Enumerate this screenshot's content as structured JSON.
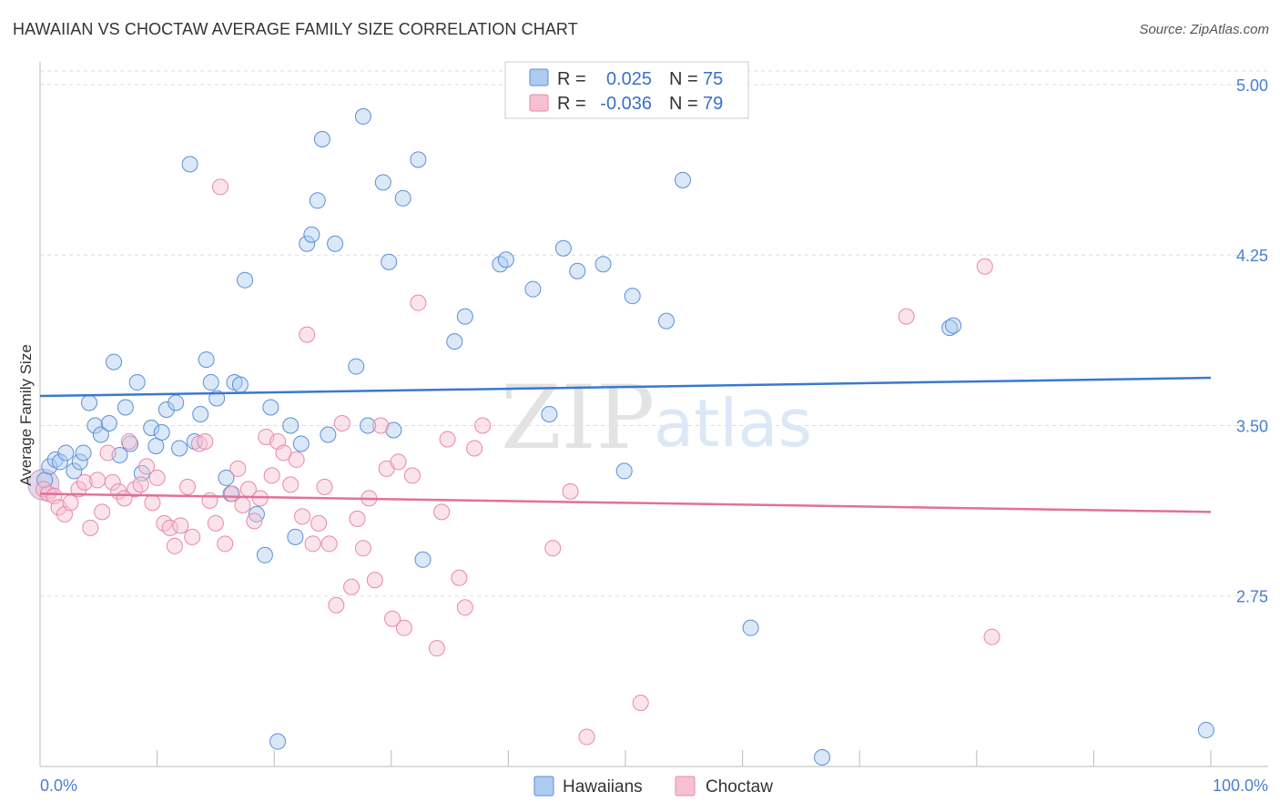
{
  "header": {
    "title": "HAWAIIAN VS CHOCTAW AVERAGE FAMILY SIZE CORRELATION CHART",
    "source": "Source: ZipAtlas.com"
  },
  "watermark": {
    "zip": "ZIP",
    "atlas": "atlas"
  },
  "colors": {
    "blue_fill": "#aecbf0",
    "blue_stroke": "#5b8fd6",
    "blue_line": "#3a78d0",
    "pink_fill": "#f6c0d2",
    "pink_stroke": "#e888aa",
    "pink_line": "#e2709a",
    "grid": "#dddddd",
    "tick_label": "#4a7fd0"
  },
  "legend": {
    "rows": [
      {
        "r_label": "R = ",
        "r_value": "0.025",
        "n_label": "N = ",
        "n_value": "75"
      },
      {
        "r_label": "R = ",
        "r_value": "-0.036",
        "n_label": "N = ",
        "n_value": "79"
      }
    ],
    "bottom": [
      "Hawaiians",
      "Choctaw"
    ]
  },
  "chart_data": {
    "type": "scatter",
    "title": "HAWAIIAN VS CHOCTAW AVERAGE FAMILY SIZE CORRELATION CHART",
    "xlabel": "",
    "ylabel": "Average Family Size",
    "xlim": [
      0,
      100
    ],
    "ylim": [
      2.0,
      5.1
    ],
    "x_tick_labels": [
      "0.0%",
      "100.0%"
    ],
    "y_ticks": [
      2.75,
      3.5,
      4.25,
      5.0
    ],
    "y_tick_labels": [
      "2.75",
      "3.50",
      "4.25",
      "5.00"
    ],
    "grid": "horizontal dashed",
    "legend_position": "top-center",
    "series": [
      {
        "name": "Hawaiians",
        "r": 0.025,
        "n": 75,
        "trend": [
          [
            0,
            3.63
          ],
          [
            100,
            3.71
          ]
        ],
        "points": [
          [
            0.4,
            3.26
          ],
          [
            0.8,
            3.32
          ],
          [
            1.3,
            3.35
          ],
          [
            1.7,
            3.34
          ],
          [
            2.2,
            3.38
          ],
          [
            2.9,
            3.3
          ],
          [
            3.4,
            3.34
          ],
          [
            3.7,
            3.38
          ],
          [
            4.2,
            3.6
          ],
          [
            4.7,
            3.5
          ],
          [
            5.2,
            3.46
          ],
          [
            5.9,
            3.51
          ],
          [
            6.3,
            3.78
          ],
          [
            6.8,
            3.37
          ],
          [
            7.3,
            3.58
          ],
          [
            7.7,
            3.42
          ],
          [
            8.3,
            3.69
          ],
          [
            8.7,
            3.29
          ],
          [
            9.5,
            3.49
          ],
          [
            9.9,
            3.41
          ],
          [
            10.4,
            3.47
          ],
          [
            10.8,
            3.57
          ],
          [
            11.6,
            3.6
          ],
          [
            11.9,
            3.4
          ],
          [
            12.8,
            4.65
          ],
          [
            13.2,
            3.43
          ],
          [
            13.7,
            3.55
          ],
          [
            14.2,
            3.79
          ],
          [
            14.6,
            3.69
          ],
          [
            15.1,
            3.62
          ],
          [
            15.9,
            3.27
          ],
          [
            16.3,
            3.2
          ],
          [
            16.6,
            3.69
          ],
          [
            17.1,
            3.68
          ],
          [
            17.5,
            4.14
          ],
          [
            18.5,
            3.11
          ],
          [
            19.2,
            2.93
          ],
          [
            19.7,
            3.58
          ],
          [
            20.3,
            2.11
          ],
          [
            21.4,
            3.5
          ],
          [
            21.8,
            3.01
          ],
          [
            22.3,
            3.42
          ],
          [
            22.8,
            4.3
          ],
          [
            23.2,
            4.34
          ],
          [
            23.7,
            4.49
          ],
          [
            24.1,
            4.76
          ],
          [
            24.6,
            3.46
          ],
          [
            25.2,
            4.3
          ],
          [
            27.0,
            3.76
          ],
          [
            27.6,
            4.86
          ],
          [
            28.0,
            3.5
          ],
          [
            29.3,
            4.57
          ],
          [
            29.8,
            4.22
          ],
          [
            30.2,
            3.48
          ],
          [
            31.0,
            4.5
          ],
          [
            32.3,
            4.67
          ],
          [
            32.7,
            2.91
          ],
          [
            35.4,
            3.87
          ],
          [
            36.3,
            3.98
          ],
          [
            39.3,
            4.21
          ],
          [
            39.8,
            4.23
          ],
          [
            42.1,
            4.1
          ],
          [
            43.5,
            3.55
          ],
          [
            44.7,
            4.28
          ],
          [
            45.9,
            4.18
          ],
          [
            48.1,
            4.21
          ],
          [
            49.9,
            3.3
          ],
          [
            50.6,
            4.07
          ],
          [
            53.5,
            3.96
          ],
          [
            54.9,
            4.58
          ],
          [
            60.7,
            2.61
          ],
          [
            77.7,
            3.93
          ],
          [
            78.0,
            3.94
          ],
          [
            66.8,
            2.04
          ],
          [
            99.6,
            2.16
          ]
        ]
      },
      {
        "name": "Choctaw",
        "r": -0.036,
        "n": 79,
        "trend": [
          [
            0,
            3.2
          ],
          [
            100,
            3.12
          ]
        ],
        "points": [
          [
            0.3,
            3.22
          ],
          [
            0.7,
            3.2
          ],
          [
            1.2,
            3.19
          ],
          [
            1.6,
            3.14
          ],
          [
            2.1,
            3.11
          ],
          [
            2.6,
            3.16
          ],
          [
            3.3,
            3.22
          ],
          [
            3.8,
            3.25
          ],
          [
            4.3,
            3.05
          ],
          [
            4.9,
            3.26
          ],
          [
            5.3,
            3.12
          ],
          [
            5.8,
            3.38
          ],
          [
            6.2,
            3.25
          ],
          [
            6.7,
            3.21
          ],
          [
            7.2,
            3.18
          ],
          [
            7.6,
            3.43
          ],
          [
            8.1,
            3.22
          ],
          [
            8.6,
            3.24
          ],
          [
            9.1,
            3.32
          ],
          [
            9.6,
            3.16
          ],
          [
            10.0,
            3.27
          ],
          [
            10.6,
            3.07
          ],
          [
            11.1,
            3.05
          ],
          [
            11.5,
            2.97
          ],
          [
            12.0,
            3.06
          ],
          [
            12.6,
            3.23
          ],
          [
            13.0,
            3.01
          ],
          [
            13.6,
            3.42
          ],
          [
            14.1,
            3.43
          ],
          [
            14.5,
            3.17
          ],
          [
            15.0,
            3.07
          ],
          [
            15.4,
            4.55
          ],
          [
            15.8,
            2.98
          ],
          [
            16.4,
            3.2
          ],
          [
            16.9,
            3.31
          ],
          [
            17.3,
            3.15
          ],
          [
            17.8,
            3.22
          ],
          [
            18.3,
            3.08
          ],
          [
            18.8,
            3.18
          ],
          [
            19.3,
            3.45
          ],
          [
            19.8,
            3.28
          ],
          [
            20.3,
            3.43
          ],
          [
            20.8,
            3.38
          ],
          [
            21.4,
            3.24
          ],
          [
            21.9,
            3.35
          ],
          [
            22.4,
            3.1
          ],
          [
            22.8,
            3.9
          ],
          [
            23.3,
            2.98
          ],
          [
            23.8,
            3.07
          ],
          [
            24.3,
            3.23
          ],
          [
            24.7,
            2.98
          ],
          [
            25.3,
            2.71
          ],
          [
            25.8,
            3.51
          ],
          [
            26.6,
            2.79
          ],
          [
            27.1,
            3.09
          ],
          [
            27.6,
            2.96
          ],
          [
            28.1,
            3.18
          ],
          [
            28.6,
            2.82
          ],
          [
            29.1,
            3.5
          ],
          [
            29.6,
            3.31
          ],
          [
            30.1,
            2.65
          ],
          [
            30.6,
            3.34
          ],
          [
            31.1,
            2.61
          ],
          [
            31.8,
            3.28
          ],
          [
            32.3,
            4.04
          ],
          [
            33.9,
            2.52
          ],
          [
            34.3,
            3.12
          ],
          [
            34.8,
            3.44
          ],
          [
            35.8,
            2.83
          ],
          [
            36.3,
            2.7
          ],
          [
            37.1,
            3.4
          ],
          [
            37.8,
            3.5
          ],
          [
            43.8,
            2.96
          ],
          [
            45.3,
            3.21
          ],
          [
            46.7,
            2.13
          ],
          [
            51.3,
            2.28
          ],
          [
            74.0,
            3.98
          ],
          [
            80.7,
            4.2
          ],
          [
            81.3,
            2.57
          ]
        ]
      }
    ]
  }
}
